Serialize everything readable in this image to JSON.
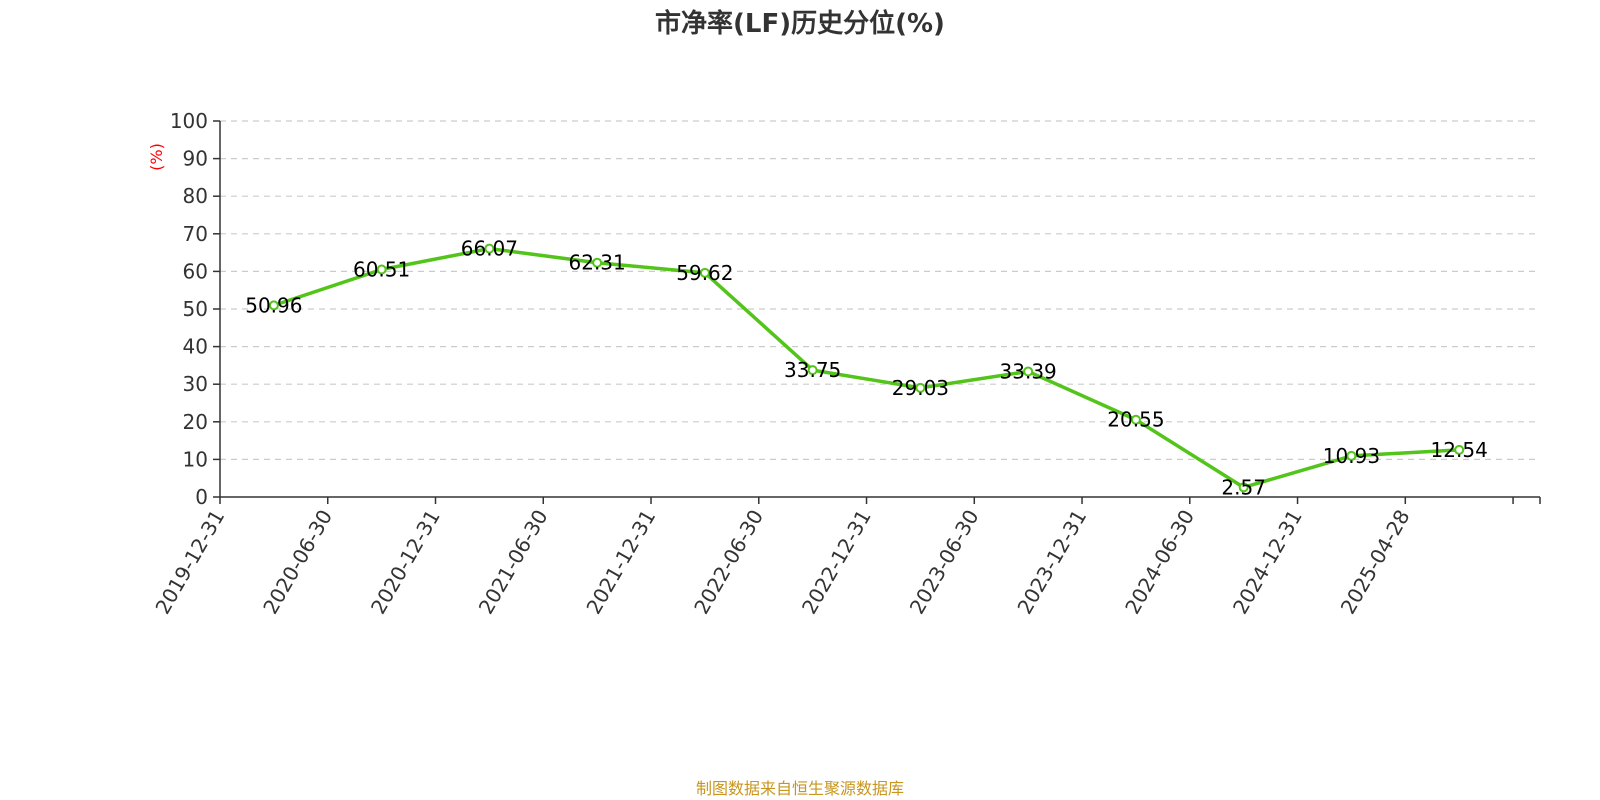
{
  "chart_data": {
    "type": "line",
    "title": "市净率(LF)历史分位(%)",
    "ylabel": "(%)",
    "xlabel": "",
    "ylim": [
      0,
      100
    ],
    "yticks": [
      0,
      10,
      20,
      30,
      40,
      50,
      60,
      70,
      80,
      90,
      100
    ],
    "categories": [
      "2019-12-31",
      "2020-06-30",
      "2020-12-31",
      "2021-06-30",
      "2021-12-31",
      "2022-06-30",
      "2022-12-31",
      "2023-06-30",
      "2023-12-31",
      "2024-06-30",
      "2024-12-31",
      "2025-04-28"
    ],
    "series": [
      {
        "values": [
          50.96,
          60.51,
          66.07,
          62.31,
          59.62,
          33.75,
          29.03,
          33.39,
          20.55,
          2.57,
          10.93,
          12.54
        ]
      }
    ],
    "grid": "horizontal-dashed",
    "legend": "none"
  },
  "source_note": "制图数据来自恒生聚源数据库",
  "colors": {
    "line": "#52c41a",
    "axis": "#333333",
    "grid": "#cccccc",
    "ylabel": "#ff0000",
    "source": "#c8961e",
    "marker_fill": "#ffffff"
  }
}
